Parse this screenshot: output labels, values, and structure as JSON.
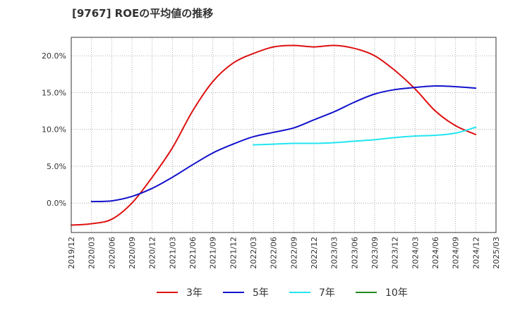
{
  "chart_data": {
    "type": "line",
    "title": "[9767]  ROEの平均値の推移",
    "xlabel": "",
    "ylabel": "",
    "ylim": [
      -4.0,
      22.5
    ],
    "y_ticks": [
      0,
      5,
      10,
      15,
      20
    ],
    "y_tick_labels": [
      "0.0%",
      "5.0%",
      "10.0%",
      "15.0%",
      "20.0%"
    ],
    "x_tick_labels": [
      "2019/12",
      "2020/03",
      "2020/06",
      "2020/09",
      "2020/12",
      "2021/03",
      "2021/06",
      "2021/09",
      "2021/12",
      "2022/03",
      "2022/06",
      "2022/09",
      "2022/12",
      "2023/03",
      "2023/06",
      "2023/09",
      "2023/12",
      "2024/03",
      "2024/06",
      "2024/09",
      "2024/12",
      "2025/03"
    ],
    "grid": true,
    "legend_position": "bottom",
    "series": [
      {
        "name": "3年",
        "color": "#dd1111",
        "start_index": 0,
        "values": [
          -3.0,
          -2.8,
          -2.2,
          0.0,
          3.5,
          7.5,
          12.5,
          16.5,
          19.0,
          20.3,
          21.2,
          21.4,
          21.2,
          21.4,
          21.0,
          20.0,
          18.0,
          15.5,
          12.5,
          10.5,
          9.3
        ]
      },
      {
        "name": "5年",
        "color": "#1111cc",
        "start_index": 1,
        "values": [
          0.2,
          0.3,
          0.9,
          2.0,
          3.5,
          5.2,
          6.8,
          8.0,
          9.0,
          9.6,
          10.2,
          11.3,
          12.4,
          13.7,
          14.8,
          15.4,
          15.7,
          15.9,
          15.8,
          15.6
        ]
      },
      {
        "name": "7年",
        "color": "#22e5f0",
        "start_index": 9,
        "values": [
          7.9,
          8.0,
          8.1,
          8.1,
          8.2,
          8.4,
          8.6,
          8.9,
          9.1,
          9.2,
          9.5,
          10.3
        ]
      },
      {
        "name": "10年",
        "color": "#228822",
        "start_index": 0,
        "values": []
      }
    ]
  }
}
